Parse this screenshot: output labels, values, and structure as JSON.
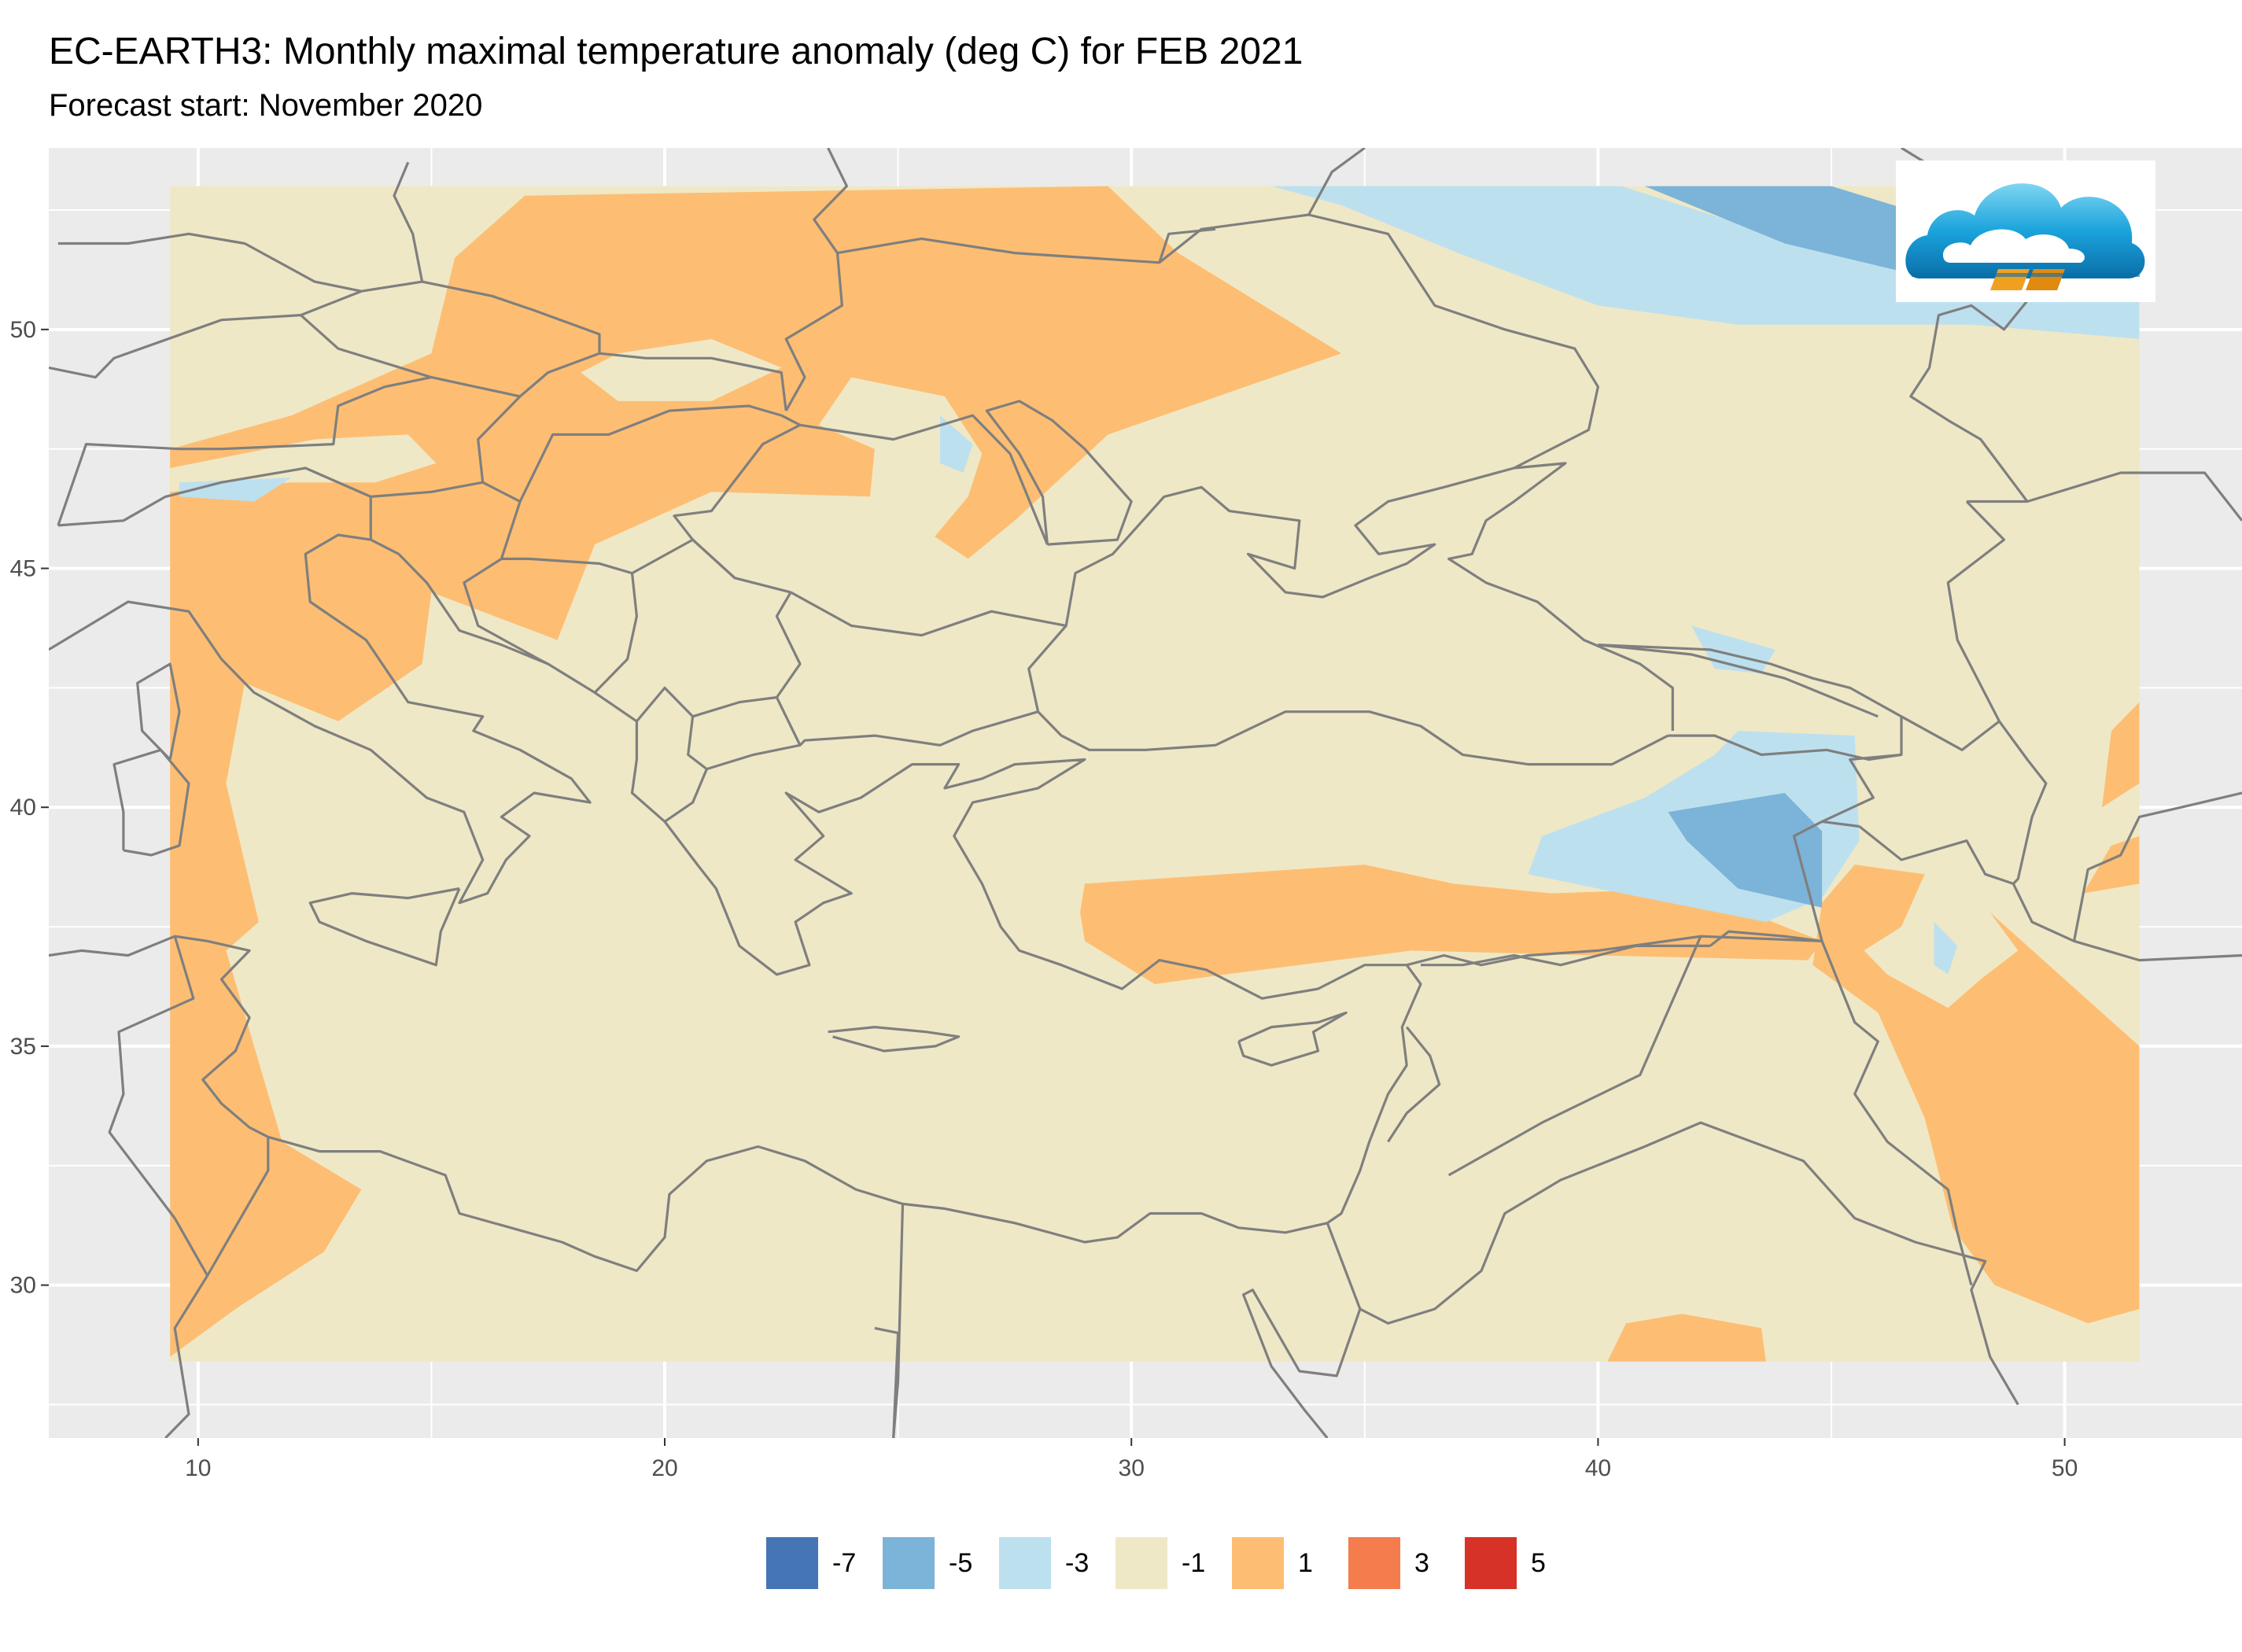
{
  "title": "EC-EARTH3: Monthly maximal temperature anomaly (deg C) for FEB 2021",
  "subtitle": "Forecast start: November 2020",
  "map_data": {
    "lon_range": [
      6.8,
      53.8
    ],
    "lat_range": [
      26.8,
      53.8
    ],
    "data_extent": {
      "lon": [
        9.4,
        51.6
      ],
      "lat": [
        28.4,
        53.0
      ]
    },
    "x_ticks": [
      10,
      20,
      30,
      40,
      50
    ],
    "y_ticks": [
      30,
      35,
      40,
      45,
      50
    ],
    "x_tick_labels": [
      "10",
      "20",
      "30",
      "40",
      "50"
    ],
    "y_tick_labels": [
      "30",
      "35",
      "40",
      "45",
      "50"
    ],
    "panel_background": "#ebebeb",
    "grid_color": "#ffffff",
    "coastline_color": "#7f7f7f",
    "anomaly_regions": [
      {
        "level": "1",
        "color": "#fdbe73",
        "lonlat": [
          [
            9.4,
            47.5
          ],
          [
            12,
            48.2
          ],
          [
            15,
            49.5
          ],
          [
            15.5,
            51.5
          ],
          [
            17,
            52.8
          ],
          [
            29.5,
            53
          ],
          [
            31,
            51.6
          ],
          [
            34.5,
            49.5
          ],
          [
            29.5,
            47.8
          ],
          [
            27.5,
            46
          ],
          [
            26.5,
            45.2
          ],
          [
            24.5,
            46.5
          ],
          [
            21,
            46.6
          ],
          [
            18.5,
            45.5
          ],
          [
            17.7,
            43.5
          ],
          [
            15,
            44.5
          ],
          [
            14.8,
            43
          ],
          [
            13,
            41.8
          ],
          [
            11,
            42.6
          ],
          [
            10.6,
            40.5
          ],
          [
            11.3,
            37.6
          ],
          [
            10.6,
            37
          ],
          [
            11.8,
            33
          ],
          [
            13.5,
            32
          ],
          [
            12.7,
            30.7
          ],
          [
            10.8,
            29.5
          ],
          [
            9.4,
            28.5
          ]
        ]
      },
      {
        "level": "1",
        "color": "#fdbe73",
        "lonlat": [
          [
            29,
            38.4
          ],
          [
            35,
            38.8
          ],
          [
            36.9,
            38.4
          ],
          [
            39,
            38.2
          ],
          [
            42,
            38.3
          ],
          [
            44,
            37.5
          ],
          [
            44.8,
            37.2
          ],
          [
            44.5,
            36.8
          ],
          [
            40,
            36.9
          ],
          [
            36,
            37
          ],
          [
            32,
            36.5
          ],
          [
            30.5,
            36.3
          ],
          [
            29,
            37.2
          ],
          [
            28.9,
            37.8
          ]
        ]
      },
      {
        "level": "1",
        "color": "#fdbe73",
        "lonlat": [
          [
            45.5,
            38.8
          ],
          [
            47,
            38.6
          ],
          [
            46.5,
            37.5
          ],
          [
            45.7,
            37
          ],
          [
            46.2,
            36.5
          ],
          [
            47.5,
            35.8
          ],
          [
            48.2,
            36.4
          ],
          [
            49,
            37
          ],
          [
            48.4,
            37.8
          ],
          [
            49.2,
            37.1
          ],
          [
            51.6,
            35
          ],
          [
            51.6,
            29.5
          ],
          [
            50.5,
            29.2
          ],
          [
            48.5,
            30
          ],
          [
            47.6,
            31.2
          ],
          [
            47,
            33.5
          ],
          [
            46,
            35.7
          ],
          [
            44.6,
            36.7
          ],
          [
            44.8,
            38
          ]
        ]
      },
      {
        "level": "1",
        "color": "#fdbe73",
        "lonlat": [
          [
            50.8,
            40
          ],
          [
            51.6,
            40.5
          ],
          [
            51.6,
            42.2
          ],
          [
            51,
            41.6
          ]
        ]
      },
      {
        "level": "1",
        "color": "#fdbe73",
        "lonlat": [
          [
            50.4,
            38.2
          ],
          [
            51.6,
            38.4
          ],
          [
            51.6,
            39.4
          ],
          [
            51,
            39.2
          ]
        ]
      },
      {
        "level": "1",
        "color": "#fdbe73",
        "lonlat": [
          [
            40.2,
            28.4
          ],
          [
            43.6,
            28.4
          ],
          [
            43.5,
            29.1
          ],
          [
            41.8,
            29.4
          ],
          [
            40.6,
            29.2
          ]
        ]
      },
      {
        "level": "-1",
        "color": "#efe8c6",
        "lonlat": [
          [
            12.5,
            47.7
          ],
          [
            14.5,
            47.8
          ],
          [
            15.1,
            47.2
          ],
          [
            13.8,
            46.8
          ],
          [
            12,
            46.8
          ],
          [
            9.4,
            46.6
          ],
          [
            9.4,
            47.1
          ]
        ]
      },
      {
        "level": "-1",
        "color": "#efe8c6",
        "lonlat": [
          [
            19,
            49.5
          ],
          [
            21,
            49.8
          ],
          [
            22.5,
            49.2
          ],
          [
            21,
            48.5
          ],
          [
            19,
            48.5
          ],
          [
            18.2,
            49.1
          ]
        ]
      },
      {
        "level": "-1",
        "color": "#efe8c6",
        "lonlat": [
          [
            24,
            49
          ],
          [
            26,
            48.6
          ],
          [
            26.8,
            47.4
          ],
          [
            26.5,
            46.5
          ],
          [
            25.3,
            45.1
          ],
          [
            24.4,
            46.5
          ],
          [
            24.5,
            47.5
          ],
          [
            23.3,
            48
          ]
        ]
      },
      {
        "level": "-3",
        "color": "#bde0ef",
        "lonlat": [
          [
            9.6,
            46.8
          ],
          [
            12,
            46.9
          ],
          [
            11.2,
            46.4
          ],
          [
            9.6,
            46.5
          ]
        ]
      },
      {
        "level": "-3",
        "color": "#bde0ef",
        "lonlat": [
          [
            25.9,
            48.2
          ],
          [
            26.6,
            47.6
          ],
          [
            26.4,
            47
          ],
          [
            25.9,
            47.2
          ]
        ]
      },
      {
        "level": "-3",
        "color": "#bde0ef",
        "lonlat": [
          [
            33,
            53
          ],
          [
            40.5,
            53
          ],
          [
            45,
            51.6
          ],
          [
            51.6,
            51
          ],
          [
            51.6,
            49.8
          ],
          [
            48,
            50.1
          ],
          [
            43,
            50.1
          ],
          [
            40,
            50.5
          ],
          [
            37,
            51.6
          ],
          [
            34.5,
            52.6
          ]
        ]
      },
      {
        "level": "-3",
        "color": "#bde0ef",
        "lonlat": [
          [
            42,
            43.8
          ],
          [
            43.8,
            43.3
          ],
          [
            43.5,
            42.8
          ],
          [
            42.5,
            42.9
          ]
        ]
      },
      {
        "level": "-3",
        "color": "#bde0ef",
        "lonlat": [
          [
            43,
            41.6
          ],
          [
            45.5,
            41.5
          ],
          [
            45.6,
            39.3
          ],
          [
            44.8,
            38.1
          ],
          [
            43.6,
            37.6
          ],
          [
            40,
            38.3
          ],
          [
            38.5,
            38.6
          ],
          [
            38.8,
            39.4
          ],
          [
            41,
            40.2
          ],
          [
            42.5,
            41.1
          ]
        ]
      },
      {
        "level": "-3",
        "color": "#bde0ef",
        "lonlat": [
          [
            47.2,
            37.6
          ],
          [
            47.7,
            37.1
          ],
          [
            47.5,
            36.5
          ],
          [
            47.2,
            36.7
          ]
        ]
      },
      {
        "level": "-5",
        "color": "#7cb3d8",
        "lonlat": [
          [
            41,
            53
          ],
          [
            45,
            53
          ],
          [
            47,
            52.4
          ],
          [
            51.6,
            51.8
          ],
          [
            51.6,
            51
          ],
          [
            47,
            51.1
          ],
          [
            44,
            51.8
          ]
        ]
      },
      {
        "level": "-5",
        "color": "#7cb3d8",
        "lonlat": [
          [
            41.5,
            39.9
          ],
          [
            44,
            40.3
          ],
          [
            44.8,
            39.5
          ],
          [
            44.8,
            37.9
          ],
          [
            43,
            38.3
          ],
          [
            41.9,
            39.3
          ]
        ]
      }
    ]
  },
  "legend": {
    "items": [
      {
        "label": "-7",
        "color": "#4575b4"
      },
      {
        "label": "-5",
        "color": "#7cb3d8"
      },
      {
        "label": "-3",
        "color": "#bde0ef"
      },
      {
        "label": "-1",
        "color": "#efe8c6"
      },
      {
        "label": "1",
        "color": "#fdbe73"
      },
      {
        "label": "3",
        "color": "#f57c4c"
      },
      {
        "label": "5",
        "color": "#d63227"
      }
    ]
  },
  "logo": {
    "icon": "cloud-logo-icon"
  }
}
